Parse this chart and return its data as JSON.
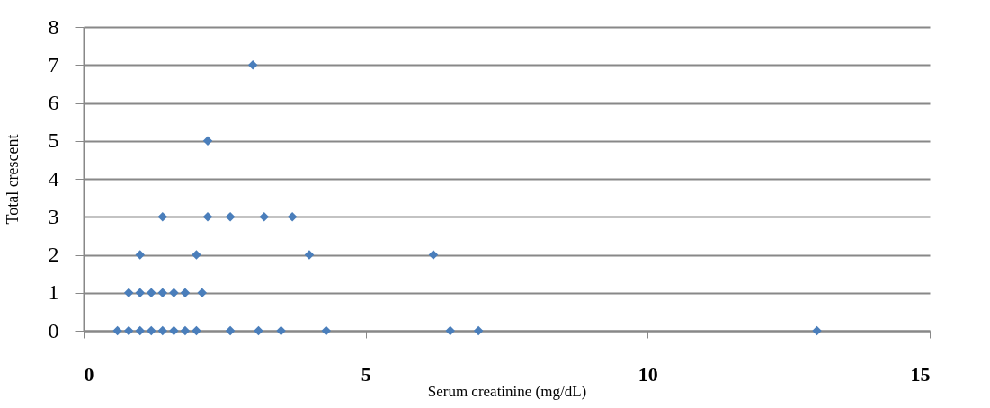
{
  "chart_data": {
    "type": "scatter",
    "xlabel": "Serum creatinine (mg/dL)",
    "ylabel": "Total crescent",
    "x": [
      0.6,
      0.8,
      1.0,
      1.2,
      1.4,
      1.6,
      1.8,
      2.0,
      2.6,
      3.1,
      3.5,
      4.3,
      6.5,
      7.0,
      13.0,
      0.8,
      1.0,
      1.2,
      1.4,
      1.6,
      1.8,
      2.1,
      1.0,
      2.0,
      4.0,
      6.2,
      1.4,
      2.2,
      2.6,
      3.2,
      3.7,
      2.2,
      3.0
    ],
    "series": [
      {
        "color": "#4a7ebb",
        "values": [
          0,
          0,
          0,
          0,
          0,
          0,
          0,
          0,
          0,
          0,
          0,
          0,
          0,
          0,
          0,
          1,
          1,
          1,
          1,
          1,
          1,
          1,
          2,
          2,
          2,
          2,
          3,
          3,
          3,
          3,
          3,
          5,
          7
        ]
      }
    ],
    "xlim": [
      0,
      15
    ],
    "xticks": [
      0,
      5,
      10,
      15
    ],
    "ylim": [
      0,
      8
    ],
    "yticks": [
      0,
      1,
      2,
      3,
      4,
      5,
      6,
      7,
      8
    ],
    "grid": "y",
    "marker": "diamond",
    "legend": false
  }
}
